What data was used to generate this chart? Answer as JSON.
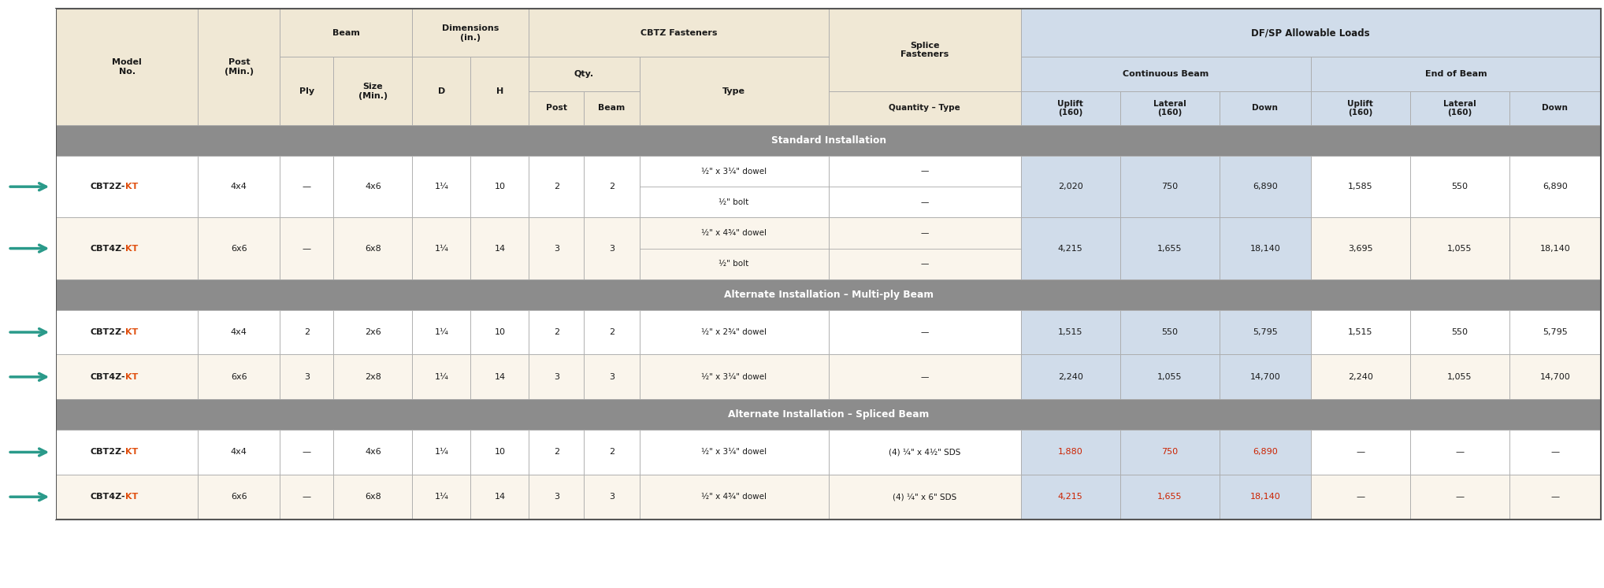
{
  "bg_color": "#faf5ec",
  "header_bg": "#f0e8d5",
  "section_bg": "#8c8c8c",
  "blue_bg": "#d0dcea",
  "white_bg": "#ffffff",
  "orange": "#e05010",
  "red_text": "#cc2200",
  "arrow_color": "#2a9a8a",
  "dark_text": "#1a1a1a",
  "border_color": "#aaaaaa",
  "sections": [
    {
      "label": "Standard Installation",
      "rows": [
        {
          "model": "CBT2Z-KT",
          "post": "4x4",
          "ply": "—",
          "size": "4x6",
          "D": "1¼",
          "H": "10",
          "qpost": "2",
          "qbeam": "2",
          "type_rows": [
            "½\" x 3¼\" dowel",
            "½\" bolt"
          ],
          "qty_type_rows": [
            "—",
            "—"
          ],
          "uplift_c": "2,020",
          "lat_c": "750",
          "down_c": "6,890",
          "uplift_e": "1,585",
          "lat_e": "550",
          "down_e": "6,890",
          "red": false,
          "bg": "white"
        },
        {
          "model": "CBT4Z-KT",
          "post": "6x6",
          "ply": "—",
          "size": "6x8",
          "D": "1¼",
          "H": "14",
          "qpost": "3",
          "qbeam": "3",
          "type_rows": [
            "½\" x 4¾\" dowel",
            "½\" bolt"
          ],
          "qty_type_rows": [
            "—",
            "—"
          ],
          "uplift_c": "4,215",
          "lat_c": "1,655",
          "down_c": "18,140",
          "uplift_e": "3,695",
          "lat_e": "1,055",
          "down_e": "18,140",
          "red": false,
          "bg": "tan"
        }
      ]
    },
    {
      "label": "Alternate Installation – Multi-ply Beam",
      "rows": [
        {
          "model": "CBT2Z-KT",
          "post": "4x4",
          "ply": "2",
          "size": "2x6",
          "D": "1¼",
          "H": "10",
          "qpost": "2",
          "qbeam": "2",
          "type_rows": [
            "½\" x 2¾\" dowel"
          ],
          "qty_type_rows": [
            "—"
          ],
          "uplift_c": "1,515",
          "lat_c": "550",
          "down_c": "5,795",
          "uplift_e": "1,515",
          "lat_e": "550",
          "down_e": "5,795",
          "red": false,
          "bg": "white"
        },
        {
          "model": "CBT4Z-KT",
          "post": "6x6",
          "ply": "3",
          "size": "2x8",
          "D": "1¼",
          "H": "14",
          "qpost": "3",
          "qbeam": "3",
          "type_rows": [
            "½\" x 3¼\" dowel"
          ],
          "qty_type_rows": [
            "—"
          ],
          "uplift_c": "2,240",
          "lat_c": "1,055",
          "down_c": "14,700",
          "uplift_e": "2,240",
          "lat_e": "1,055",
          "down_e": "14,700",
          "red": false,
          "bg": "tan"
        }
      ]
    },
    {
      "label": "Alternate Installation – Spliced Beam",
      "rows": [
        {
          "model": "CBT2Z-KT",
          "post": "4x4",
          "ply": "—",
          "size": "4x6",
          "D": "1¼",
          "H": "10",
          "qpost": "2",
          "qbeam": "2",
          "type_rows": [
            "½\" x 3¼\" dowel"
          ],
          "qty_type_rows": [
            "(4) ¼\" x 4½\" SDS"
          ],
          "uplift_c": "1,880",
          "lat_c": "750",
          "down_c": "6,890",
          "uplift_e": "—",
          "lat_e": "—",
          "down_e": "—",
          "red": true,
          "bg": "white"
        },
        {
          "model": "CBT4Z-KT",
          "post": "6x6",
          "ply": "—",
          "size": "6x8",
          "D": "1¼",
          "H": "14",
          "qpost": "3",
          "qbeam": "3",
          "type_rows": [
            "½\" x 4¾\" dowel"
          ],
          "qty_type_rows": [
            "(4) ¼\" x 6\" SDS"
          ],
          "uplift_c": "4,215",
          "lat_c": "1,655",
          "down_c": "18,140",
          "uplift_e": "—",
          "lat_e": "—",
          "down_e": "—",
          "red": true,
          "bg": "tan"
        }
      ]
    }
  ]
}
